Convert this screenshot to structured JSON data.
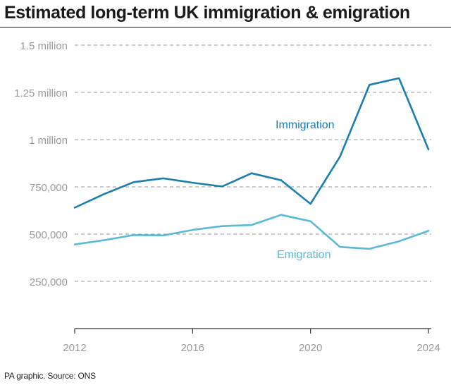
{
  "title": "Estimated long-term UK immigration & emigration",
  "footer": "PA graphic. Source: ONS",
  "colors": {
    "immigration": "#1a7fb0",
    "emigration": "#5bb8d8",
    "grid": "#9a9a9a",
    "tick_text": "#9a9a9a",
    "axis": "#333333"
  },
  "chart_data": {
    "type": "line",
    "title": "Estimated long-term UK immigration & emigration",
    "xlabel": "",
    "ylabel": "",
    "xlim": [
      2012,
      2024
    ],
    "ylim": [
      0,
      1500000
    ],
    "grid": true,
    "x_ticks": [
      {
        "value": 2012,
        "label": "2012"
      },
      {
        "value": 2016,
        "label": "2016"
      },
      {
        "value": 2020,
        "label": "2020"
      },
      {
        "value": 2024,
        "label": "2024"
      }
    ],
    "y_ticks": [
      {
        "value": 1500000,
        "label": "1.5 million"
      },
      {
        "value": 1250000,
        "label": "1.25 million"
      },
      {
        "value": 1000000,
        "label": "1 million"
      },
      {
        "value": 750000,
        "label": "750,000"
      },
      {
        "value": 500000,
        "label": "500,000"
      },
      {
        "value": 250000,
        "label": "250,000"
      }
    ],
    "x": [
      2012,
      2013,
      2014,
      2015,
      2016,
      2017,
      2018,
      2019,
      2020,
      2021,
      2022,
      2023,
      2024
    ],
    "series": [
      {
        "name": "Immigration",
        "color": "#1a7fb0",
        "values": [
          640000,
          712000,
          775000,
          795000,
          772000,
          752000,
          822000,
          785000,
          660000,
          910000,
          1290000,
          1325000,
          948000
        ]
      },
      {
        "name": "Emigration",
        "color": "#5bb8d8",
        "values": [
          445000,
          468000,
          495000,
          493000,
          522000,
          542000,
          548000,
          602000,
          568000,
          432000,
          422000,
          462000,
          517000
        ]
      }
    ]
  }
}
